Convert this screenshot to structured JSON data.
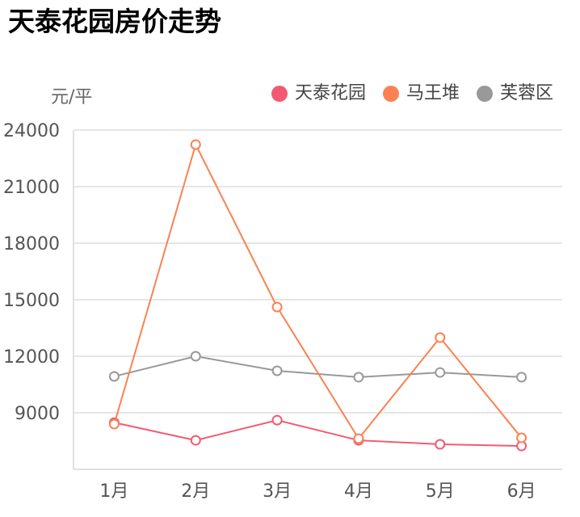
{
  "title": "天泰花园房价走势",
  "y_unit": "元/平",
  "legend": [
    {
      "label": "天泰花园",
      "color": "#f25a72"
    },
    {
      "label": "马王堆",
      "color": "#fb8152"
    },
    {
      "label": "芙蓉区",
      "color": "#999999"
    }
  ],
  "chart_data": {
    "type": "line",
    "title": "天泰花园房价走势",
    "xlabel": "",
    "ylabel": "元/平",
    "categories": [
      "1月",
      "2月",
      "3月",
      "4月",
      "5月",
      "6月"
    ],
    "yticks": [
      9000,
      12000,
      15000,
      18000,
      21000,
      24000
    ],
    "ylim": [
      6000,
      24000
    ],
    "grid": true,
    "legend_position": "top-right",
    "series": [
      {
        "name": "天泰花园",
        "color": "#f25a72",
        "values": [
          8480,
          7540,
          8610,
          7540,
          7330,
          7240
        ]
      },
      {
        "name": "马王堆",
        "color": "#fb8152",
        "values": [
          8400,
          23230,
          14610,
          7630,
          12990,
          7670
        ]
      },
      {
        "name": "芙蓉区",
        "color": "#999999",
        "values": [
          10930,
          12000,
          11230,
          10890,
          11140,
          10890
        ]
      }
    ]
  }
}
